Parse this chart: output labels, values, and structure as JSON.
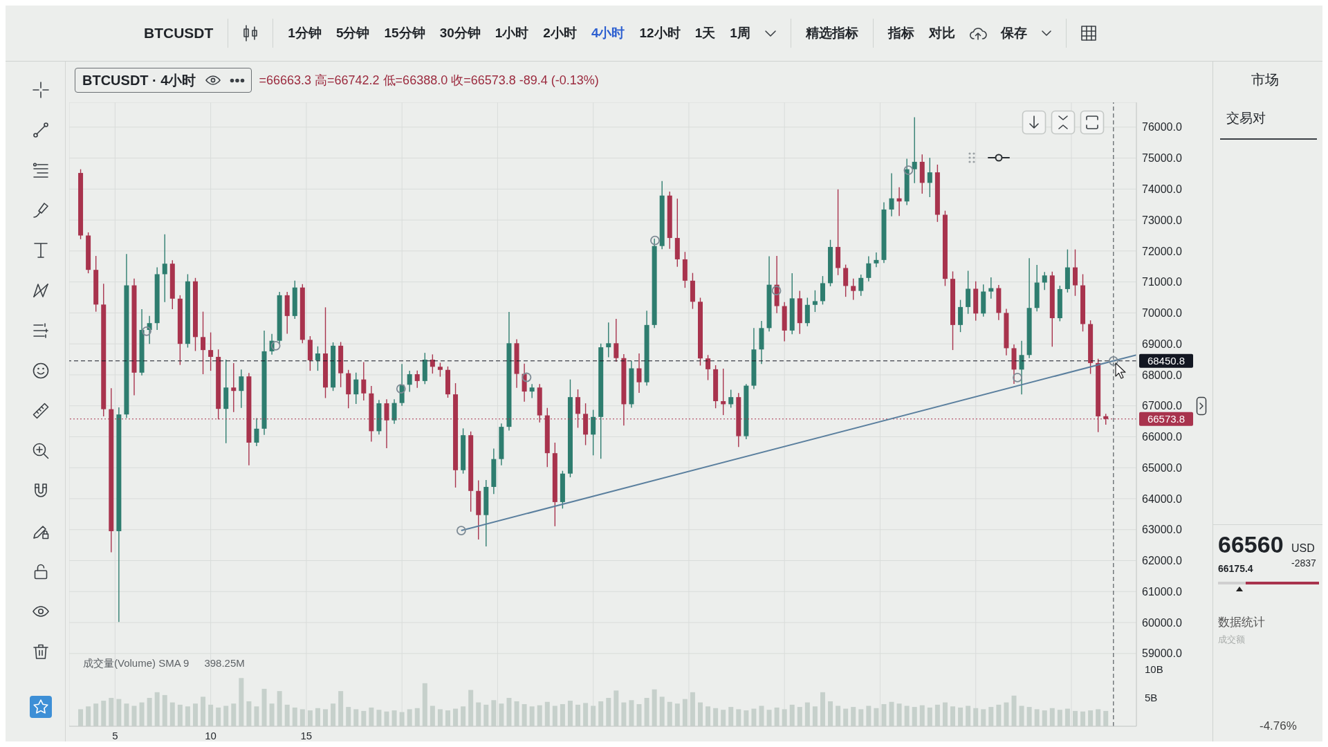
{
  "chart_data": [
    {
      "type": "other",
      "annotations": [
        "BTCUSDT",
        "1分钟",
        "5分钟",
        "15分钟",
        "30分钟",
        "1小时",
        "2小时",
        "4小时",
        "12小时",
        "1天",
        "1周",
        "精选指标",
        "指标",
        "对比",
        "保存"
      ]
    },
    {
      "type": "candlestick",
      "title": "BTCUSDT · 4小时",
      "subtitle": "=66663.3 高=66742.2 低=66388.0 收=66573.8 -89.4 (-0.13%)",
      "annotations": [
        "成交量(Volume) SMA 9",
        "398.25M"
      ],
      "x": [
        3.2,
        3.6,
        4.0,
        4.4,
        4.8,
        5.2,
        5.6,
        6.0,
        6.4,
        6.8,
        7.2,
        7.6,
        8.0,
        8.4,
        8.8,
        9.2,
        9.6,
        10.0,
        10.4,
        10.8,
        11.2,
        11.6,
        12.0,
        12.4,
        12.8,
        13.2,
        13.6,
        14.0,
        14.4,
        14.8,
        15.2,
        15.6,
        16.0,
        16.4,
        16.8,
        17.2,
        17.6,
        18.0,
        18.4,
        18.8,
        19.2,
        19.6,
        20.0,
        20.4,
        20.8,
        21.2,
        21.6,
        22.0,
        22.4,
        22.8,
        23.2,
        23.6,
        24.0,
        24.4,
        24.8,
        25.2,
        25.6,
        26.0,
        26.4,
        26.8,
        27.2,
        27.6,
        28.0,
        28.4,
        28.8,
        29.2,
        29.6,
        30.0,
        30.4,
        30.8,
        31.2,
        31.6,
        32.0,
        32.4,
        32.8,
        33.2,
        33.6,
        34.0,
        34.4,
        34.8,
        35.2,
        35.6,
        36.0,
        36.4,
        36.8,
        37.2,
        37.6,
        38.0,
        38.4,
        38.8,
        39.2,
        39.6,
        40.0,
        40.4,
        40.8,
        41.2,
        41.6,
        42.0,
        42.4,
        42.8,
        43.2,
        43.6,
        44.0,
        44.4,
        44.8,
        45.2,
        45.6,
        46.0,
        46.4,
        46.8,
        47.2,
        47.6,
        48.0,
        48.4,
        48.8,
        49.2,
        49.6,
        50.0,
        50.4,
        50.8,
        51.2,
        51.6,
        52.0,
        52.4,
        52.8,
        53.2,
        53.6,
        54.0,
        54.4,
        54.8,
        55.2,
        55.6,
        56.0,
        56.4,
        56.8
      ],
      "ohlc": [
        [
          74520,
          74640,
          72380,
          72500
        ],
        [
          72500,
          72600,
          71280,
          71390
        ],
        [
          71390,
          71840,
          70040,
          70270
        ],
        [
          70270,
          70940,
          66660,
          66890
        ],
        [
          66890,
          67570,
          62270,
          62950
        ],
        [
          62950,
          66950,
          60020,
          66720
        ],
        [
          66720,
          71900,
          66610,
          70890
        ],
        [
          70890,
          71110,
          67340,
          68070
        ],
        [
          68070,
          70120,
          67980,
          69450
        ],
        [
          69450,
          69900,
          69000,
          69670
        ],
        [
          69670,
          71470,
          69450,
          71250
        ],
        [
          71250,
          72540,
          70350,
          71590
        ],
        [
          71590,
          71700,
          70120,
          70460
        ],
        [
          70460,
          70570,
          68320,
          69000
        ],
        [
          69000,
          71250,
          68880,
          71020
        ],
        [
          71020,
          71130,
          68770,
          69220
        ],
        [
          69220,
          70040,
          68020,
          68800
        ],
        [
          68800,
          69370,
          68130,
          68580
        ],
        [
          68580,
          68820,
          66560,
          66900
        ],
        [
          66900,
          68490,
          65790,
          67590
        ],
        [
          67590,
          68380,
          66800,
          67480
        ],
        [
          67480,
          68170,
          66930,
          67950
        ],
        [
          67950,
          68060,
          65080,
          65810
        ],
        [
          65810,
          66600,
          65700,
          66260
        ],
        [
          66260,
          69430,
          66060,
          68760
        ],
        [
          68760,
          69320,
          68650,
          69100
        ],
        [
          69100,
          70680,
          69000,
          70570
        ],
        [
          70570,
          70680,
          69330,
          69900
        ],
        [
          69900,
          71040,
          69810,
          70820
        ],
        [
          70820,
          70930,
          69020,
          69130
        ],
        [
          69130,
          69250,
          68130,
          68470
        ],
        [
          68470,
          68920,
          68130,
          68690
        ],
        [
          68690,
          70180,
          67250,
          67590
        ],
        [
          67590,
          69050,
          67480,
          68940
        ],
        [
          68940,
          69060,
          67600,
          68050
        ],
        [
          68050,
          68160,
          66920,
          67370
        ],
        [
          67370,
          68070,
          67060,
          67850
        ],
        [
          67850,
          68410,
          67170,
          67400
        ],
        [
          67400,
          67640,
          65840,
          66180
        ],
        [
          66180,
          67190,
          66070,
          67080
        ],
        [
          67080,
          67210,
          65630,
          66530
        ],
        [
          66530,
          67210,
          66420,
          67090
        ],
        [
          67090,
          68350,
          67000,
          67680
        ],
        [
          67680,
          68130,
          67450,
          68020
        ],
        [
          68020,
          68140,
          67580,
          67800
        ],
        [
          67800,
          68710,
          67700,
          68490
        ],
        [
          68490,
          68660,
          68040,
          68260
        ],
        [
          68260,
          68390,
          67940,
          68160
        ],
        [
          68160,
          68270,
          67260,
          67370
        ],
        [
          67370,
          67730,
          64360,
          64920
        ],
        [
          64920,
          66270,
          64810,
          66050
        ],
        [
          66050,
          66170,
          63580,
          64250
        ],
        [
          64250,
          64590,
          62680,
          63470
        ],
        [
          63470,
          64600,
          62460,
          64380
        ],
        [
          64380,
          65620,
          64150,
          65280
        ],
        [
          65280,
          66430,
          65080,
          66320
        ],
        [
          66320,
          70030,
          66200,
          69020
        ],
        [
          69020,
          69150,
          67580,
          68030
        ],
        [
          68030,
          68360,
          67130,
          67460
        ],
        [
          67460,
          67700,
          67250,
          67590
        ],
        [
          67590,
          67700,
          66460,
          66690
        ],
        [
          66690,
          66930,
          65020,
          65470
        ],
        [
          65470,
          65810,
          63110,
          63890
        ],
        [
          63890,
          64900,
          63680,
          64810
        ],
        [
          64810,
          67850,
          64690,
          67280
        ],
        [
          67280,
          67530,
          66290,
          66740
        ],
        [
          66740,
          67080,
          65730,
          66070
        ],
        [
          66070,
          66870,
          65400,
          66640
        ],
        [
          66640,
          69010,
          65290,
          68890
        ],
        [
          68890,
          69690,
          68570,
          69020
        ],
        [
          69020,
          69810,
          68420,
          68540
        ],
        [
          68540,
          68670,
          66360,
          67050
        ],
        [
          67050,
          68450,
          66940,
          68210
        ],
        [
          68210,
          68690,
          67420,
          67760
        ],
        [
          67760,
          70070,
          67650,
          69610
        ],
        [
          69610,
          72400,
          69510,
          72160
        ],
        [
          72160,
          74260,
          72060,
          73790
        ],
        [
          73790,
          73920,
          72070,
          72420
        ],
        [
          72420,
          73690,
          71490,
          71730
        ],
        [
          71730,
          71970,
          70810,
          71040
        ],
        [
          71040,
          71290,
          70130,
          70360
        ],
        [
          70360,
          70490,
          68300,
          68530
        ],
        [
          68530,
          68640,
          67830,
          68180
        ],
        [
          68180,
          68310,
          66920,
          67150
        ],
        [
          67150,
          68200,
          66700,
          67050
        ],
        [
          67050,
          67520,
          66940,
          67280
        ],
        [
          67280,
          67410,
          65670,
          66020
        ],
        [
          66020,
          67700,
          65920,
          67650
        ],
        [
          67650,
          69510,
          67540,
          68820
        ],
        [
          68820,
          69740,
          68350,
          69510
        ],
        [
          69510,
          71830,
          69400,
          70910
        ],
        [
          70910,
          71840,
          69990,
          70220
        ],
        [
          70220,
          70350,
          69080,
          69430
        ],
        [
          69430,
          71280,
          69310,
          70470
        ],
        [
          70470,
          70710,
          69320,
          69670
        ],
        [
          69670,
          70490,
          69570,
          70260
        ],
        [
          70260,
          70730,
          70030,
          70380
        ],
        [
          70380,
          71190,
          70270,
          70960
        ],
        [
          70960,
          72360,
          70860,
          72130
        ],
        [
          72130,
          73990,
          71220,
          71450
        ],
        [
          71450,
          71560,
          70520,
          70870
        ],
        [
          70870,
          71110,
          70420,
          70710
        ],
        [
          70710,
          71240,
          70550,
          71130
        ],
        [
          71130,
          71830,
          71020,
          71600
        ],
        [
          71600,
          71950,
          71480,
          71710
        ],
        [
          71710,
          73570,
          71610,
          73340
        ],
        [
          73340,
          74510,
          73120,
          73700
        ],
        [
          73700,
          74060,
          73130,
          73600
        ],
        [
          73600,
          74980,
          73480,
          74640
        ],
        [
          74640,
          76320,
          74190,
          74880
        ],
        [
          74880,
          75120,
          73850,
          74200
        ],
        [
          74200,
          75010,
          73740,
          74540
        ],
        [
          74540,
          74790,
          72940,
          73170
        ],
        [
          73170,
          73300,
          70870,
          71100
        ],
        [
          71100,
          71340,
          68800,
          69610
        ],
        [
          69610,
          70420,
          69380,
          70190
        ],
        [
          70190,
          71360,
          69970,
          70780
        ],
        [
          70780,
          71020,
          69750,
          69980
        ],
        [
          69980,
          70920,
          69880,
          70690
        ],
        [
          70690,
          71150,
          70460,
          70800
        ],
        [
          70800,
          70900,
          69770,
          70000
        ],
        [
          70000,
          70130,
          68630,
          68860
        ],
        [
          68860,
          68980,
          67710,
          68170
        ],
        [
          68170,
          69100,
          67370,
          68640
        ],
        [
          68640,
          71770,
          68540,
          70160
        ],
        [
          70160,
          71550,
          70050,
          70980
        ],
        [
          70980,
          71320,
          70740,
          71210
        ],
        [
          71210,
          71330,
          68910,
          69830
        ],
        [
          69830,
          70880,
          69730,
          70770
        ],
        [
          70770,
          72050,
          70660,
          71470
        ],
        [
          71470,
          72050,
          70550,
          70890
        ],
        [
          70890,
          71250,
          69400,
          69640
        ],
        [
          69640,
          69760,
          68030,
          68380
        ],
        [
          68380,
          68520,
          66150,
          66660
        ],
        [
          66663.3,
          66742.2,
          66388.0,
          66573.8
        ]
      ],
      "colors": [
        "#a8334d",
        "#a8334d",
        "#a8334d",
        "#a8334d",
        "#a8334d",
        "#2e7d6f",
        "#2e7d6f",
        "#a8334d",
        "#2e7d6f",
        "#2e7d6f",
        "#2e7d6f",
        "#2e7d6f",
        "#a8334d",
        "#a8334d",
        "#2e7d6f",
        "#a8334d",
        "#a8334d",
        "#a8334d",
        "#a8334d",
        "#2e7d6f",
        "#a8334d",
        "#2e7d6f",
        "#a8334d",
        "#2e7d6f",
        "#2e7d6f",
        "#2e7d6f",
        "#2e7d6f",
        "#a8334d",
        "#2e7d6f",
        "#a8334d",
        "#a8334d",
        "#2e7d6f",
        "#a8334d",
        "#2e7d6f",
        "#a8334d",
        "#a8334d",
        "#2e7d6f",
        "#a8334d",
        "#a8334d",
        "#2e7d6f",
        "#a8334d",
        "#2e7d6f",
        "#2e7d6f",
        "#2e7d6f",
        "#a8334d",
        "#2e7d6f",
        "#a8334d",
        "#a8334d",
        "#a8334d",
        "#a8334d",
        "#2e7d6f",
        "#a8334d",
        "#a8334d",
        "#2e7d6f",
        "#2e7d6f",
        "#2e7d6f",
        "#2e7d6f",
        "#a8334d",
        "#a8334d",
        "#2e7d6f",
        "#a8334d",
        "#a8334d",
        "#a8334d",
        "#2e7d6f",
        "#2e7d6f",
        "#a8334d",
        "#a8334d",
        "#2e7d6f",
        "#2e7d6f",
        "#2e7d6f",
        "#a8334d",
        "#a8334d",
        "#2e7d6f",
        "#a8334d",
        "#2e7d6f",
        "#2e7d6f",
        "#2e7d6f",
        "#a8334d",
        "#a8334d",
        "#a8334d",
        "#a8334d",
        "#a8334d",
        "#a8334d",
        "#a8334d",
        "#a8334d",
        "#2e7d6f",
        "#a8334d",
        "#2e7d6f",
        "#2e7d6f",
        "#2e7d6f",
        "#2e7d6f",
        "#a8334d",
        "#a8334d",
        "#2e7d6f",
        "#a8334d",
        "#2e7d6f",
        "#2e7d6f",
        "#2e7d6f",
        "#2e7d6f",
        "#a8334d",
        "#a8334d",
        "#a8334d",
        "#2e7d6f",
        "#2e7d6f",
        "#2e7d6f",
        "#2e7d6f",
        "#2e7d6f",
        "#a8334d",
        "#2e7d6f",
        "#2e7d6f",
        "#a8334d",
        "#2e7d6f",
        "#a8334d",
        "#a8334d",
        "#a8334d",
        "#2e7d6f",
        "#2e7d6f",
        "#a8334d",
        "#2e7d6f",
        "#2e7d6f",
        "#a8334d",
        "#a8334d",
        "#a8334d",
        "#2e7d6f",
        "#2e7d6f",
        "#2e7d6f",
        "#2e7d6f",
        "#a8334d",
        "#2e7d6f",
        "#2e7d6f",
        "#a8334d",
        "#a8334d",
        "#a8334d",
        "#a8334d",
        "#a8334d"
      ],
      "series": [
        {
          "type": "bar",
          "axis": "y2",
          "color": "#c6d0cb",
          "values": [
            3.0,
            3.5,
            4.0,
            4.5,
            5.0,
            4.8,
            4.0,
            3.6,
            4.2,
            5.0,
            6.0,
            5.5,
            4.2,
            3.8,
            3.5,
            4.0,
            5.2,
            3.8,
            3.3,
            3.6,
            4.0,
            8.5,
            4.4,
            3.5,
            6.6,
            4.0,
            6.2,
            3.8,
            3.3,
            3.0,
            2.8,
            3.2,
            3.0,
            4.0,
            6.2,
            3.4,
            3.0,
            2.7,
            3.3,
            2.9,
            2.6,
            2.8,
            2.5,
            3.0,
            3.2,
            7.6,
            3.6,
            3.0,
            2.8,
            3.1,
            3.5,
            6.4,
            4.2,
            3.8,
            4.6,
            4.0,
            5.0,
            4.4,
            3.9,
            3.5,
            3.7,
            4.3,
            3.6,
            3.9,
            4.5,
            3.8,
            4.1,
            3.6,
            4.4,
            5.0,
            6.3,
            4.2,
            4.6,
            3.9,
            5.0,
            6.5,
            5.2,
            4.3,
            4.0,
            4.8,
            6.0,
            4.2,
            3.5,
            3.2,
            2.9,
            3.4,
            3.0,
            2.8,
            3.1,
            3.6,
            2.9,
            3.3,
            3.0,
            3.8,
            3.4,
            4.2,
            3.5,
            6.0,
            4.4,
            3.6,
            3.1,
            3.4,
            3.0,
            3.6,
            3.2,
            3.9,
            4.3,
            4.0,
            3.6,
            3.4,
            3.7,
            3.3,
            3.8,
            4.2,
            3.5,
            3.3,
            3.6,
            3.2,
            3.0,
            3.4,
            3.8,
            4.2,
            5.4,
            3.6,
            3.4,
            3.0,
            2.8,
            3.2,
            2.9,
            3.1,
            2.7,
            2.6,
            2.8,
            3.0,
            2.7
          ]
        },
        {
          "type": "line",
          "color": "#5a7f9e",
          "line_style": "solid",
          "marker": "none",
          "x": [
            23.1,
            57.2,
            58.4
          ],
          "values": [
            62970,
            68450,
            68640
          ]
        },
        {
          "type": "scatter",
          "color": "#7d8a94",
          "marker": "circle",
          "x": [
            6.65,
            13.4,
            19.95,
            23.1,
            26.52,
            33.23,
            39.58,
            46.48,
            52.18,
            57.2
          ],
          "values": [
            69410,
            68940,
            67550,
            62970,
            67920,
            72340,
            70720,
            74610,
            67910,
            68450
          ]
        }
      ],
      "xlim": [
        2.6,
        58.4
      ],
      "xticks": [
        5,
        10,
        15,
        {
          "value": 20,
          "label": null
        },
        {
          "value": 25,
          "label": null
        },
        {
          "value": 30,
          "label": null
        },
        {
          "value": 35,
          "label": null
        },
        {
          "value": 40,
          "label": null
        },
        {
          "value": 45,
          "label": null
        },
        {
          "value": 50,
          "label": null
        },
        {
          "value": 55,
          "label": null
        }
      ],
      "ylim": [
        56650,
        76800
      ],
      "yticks": [
        {
          "value": 59000,
          "label": "59000.0"
        },
        {
          "value": 60000,
          "label": "60000.0"
        },
        {
          "value": 61000,
          "label": "61000.0"
        },
        {
          "value": 62000,
          "label": "62000.0"
        },
        {
          "value": 63000,
          "label": "63000.0"
        },
        {
          "value": 64000,
          "label": "64000.0"
        },
        {
          "value": 65000,
          "label": "65000.0"
        },
        {
          "value": 66000,
          "label": "66000.0"
        },
        {
          "value": 67000,
          "label": "67000.0"
        },
        {
          "value": 68000,
          "label": "68000.0"
        },
        {
          "value": 69000,
          "label": "69000.0"
        },
        {
          "value": 70000,
          "label": "70000.0"
        },
        {
          "value": 71000,
          "label": "71000.0"
        },
        {
          "value": 72000,
          "label": "72000.0"
        },
        {
          "value": 73000,
          "label": "73000.0"
        },
        {
          "value": 74000,
          "label": "74000.0"
        },
        {
          "value": 75000,
          "label": "75000.0"
        },
        {
          "value": 76000,
          "label": "76000.0"
        }
      ],
      "y2lim": [
        0,
        110
      ],
      "y2ticks": [
        {
          "value": 5,
          "label": "5B"
        },
        {
          "value": 10,
          "label": "10B"
        }
      ],
      "ref_lines": [
        {
          "axis": "y",
          "value": 68450.8,
          "label": "68450.8",
          "color": "#131722",
          "line_style": "dashed"
        },
        {
          "axis": "y",
          "value": 66573.8,
          "label": "66573.8",
          "color": "#a8334d",
          "line_style": "dotted"
        },
        {
          "axis": "x",
          "value": 57.2,
          "color": "#555b60",
          "line_style": "dashed"
        }
      ],
      "grid": true
    },
    {
      "type": "other",
      "annotations": [
        "市场",
        "交易对",
        "66560",
        "USD",
        "-2837",
        "66175.4",
        "数据统计",
        "成交额",
        "-4.76%"
      ]
    }
  ]
}
